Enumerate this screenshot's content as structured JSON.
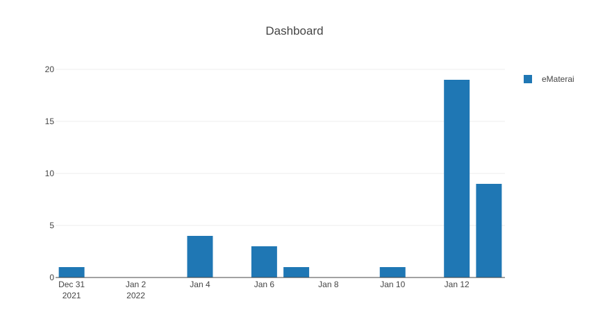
{
  "chart_data": {
    "type": "bar",
    "title": "Dashboard",
    "xlabel": "",
    "ylabel": "",
    "x": [
      "2021-12-31",
      "2022-01-04",
      "2022-01-06",
      "2022-01-07",
      "2022-01-10",
      "2022-01-12",
      "2022-01-13"
    ],
    "series": [
      {
        "name": "eMaterai",
        "color": "#1f77b4",
        "values": [
          1,
          4,
          3,
          1,
          1,
          19,
          9
        ]
      }
    ],
    "xlim": [
      "2021-12-30 12:00",
      "2022-01-13 12:00"
    ],
    "ylim": [
      0,
      21
    ],
    "yticks": [
      0,
      5,
      10,
      15,
      20
    ],
    "xticks": [
      {
        "date": "2021-12-31",
        "line1": "Dec 31",
        "line2": "2021"
      },
      {
        "date": "2022-01-02",
        "line1": "Jan 2",
        "line2": "2022"
      },
      {
        "date": "2022-01-04",
        "line1": "Jan 4",
        "line2": ""
      },
      {
        "date": "2022-01-06",
        "line1": "Jan 6",
        "line2": ""
      },
      {
        "date": "2022-01-08",
        "line1": "Jan 8",
        "line2": ""
      },
      {
        "date": "2022-01-10",
        "line1": "Jan 10",
        "line2": ""
      },
      {
        "date": "2022-01-12",
        "line1": "Jan 12",
        "line2": ""
      }
    ],
    "grid": true,
    "legend_position": "top-right"
  }
}
